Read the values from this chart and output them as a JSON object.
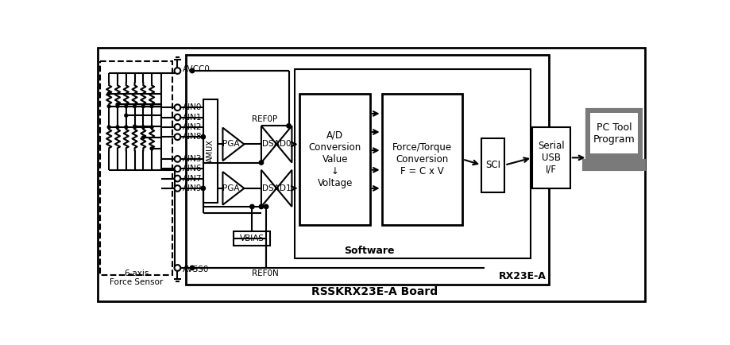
{
  "board_label": "RSSKRX23E-A Board",
  "rx_label": "RX23E-A",
  "sw_label": "Software",
  "sensor_label": "6-axis\nForce Sensor",
  "avcc0": "AVCC0",
  "avss0": "AVSS0",
  "ref0p": "REF0P",
  "ref0n": "REF0N",
  "amux": "AMUX",
  "pga": "PGA",
  "dsad0": "DSAD0",
  "dsad1": "DSAD1",
  "vbias": "VBIAS",
  "adc_text": "A/D\nConversion\nValue\n↓\nVoltage",
  "force_text": "Force/Torque\nConversion\nF = C x V",
  "sci": "SCI",
  "usb_text": "Serial\nUSB\nI/F",
  "pc_text": "PC Tool\nProgram",
  "gray": "#7a7a7a",
  "lgray": "#b0b0b0"
}
